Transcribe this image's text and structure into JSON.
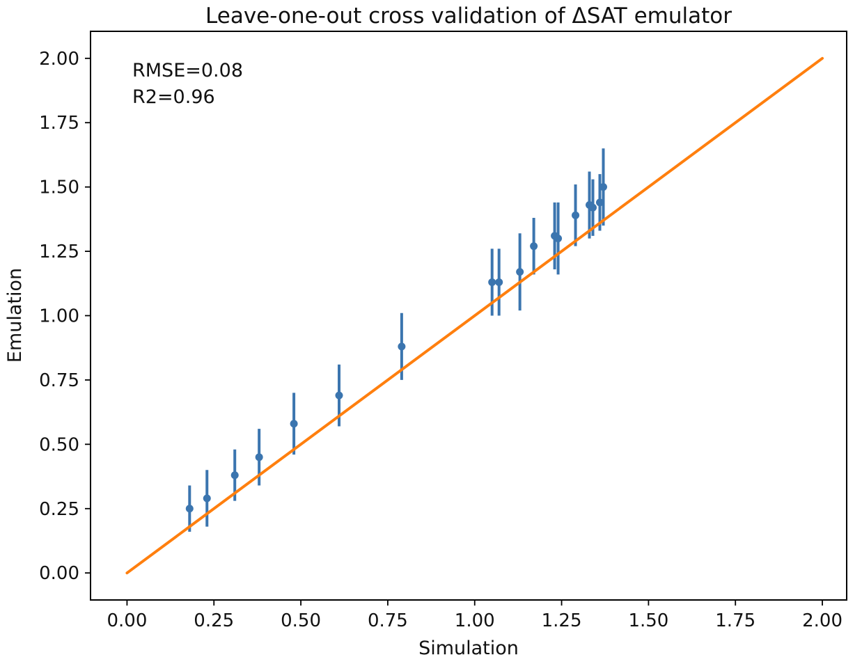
{
  "figure": {
    "background": "#ffffff"
  },
  "chart_data": {
    "type": "scatter",
    "title": "Leave-one-out cross validation of ΔSAT emulator",
    "xlabel": "Simulation",
    "ylabel": "Emulation",
    "xlim": [
      -0.105,
      2.07
    ],
    "ylim": [
      -0.105,
      2.105
    ],
    "xticks": [
      "0.00",
      "0.25",
      "0.50",
      "0.75",
      "1.00",
      "1.25",
      "1.50",
      "1.75",
      "2.00"
    ],
    "yticks": [
      "0.00",
      "0.25",
      "0.50",
      "0.75",
      "1.00",
      "1.25",
      "1.50",
      "1.75",
      "2.00"
    ],
    "grid": false,
    "legend": false,
    "annotations": [
      "RMSE=0.08",
      "R2=0.96"
    ],
    "annotation_color": "#111111",
    "identity_line": {
      "x": [
        0,
        2
      ],
      "y": [
        0,
        2
      ],
      "color": "#ff7f0e",
      "width": 4
    },
    "series": [
      {
        "name": "points",
        "type": "errorbar",
        "color": "#3b75af",
        "marker": "circle",
        "marker_radius": 5.5,
        "errorbar_width": 4,
        "points": [
          {
            "x": 0.18,
            "y": 0.25,
            "yerr": 0.09
          },
          {
            "x": 0.23,
            "y": 0.29,
            "yerr": 0.11
          },
          {
            "x": 0.31,
            "y": 0.38,
            "yerr": 0.1
          },
          {
            "x": 0.38,
            "y": 0.45,
            "yerr": 0.11
          },
          {
            "x": 0.48,
            "y": 0.58,
            "yerr": 0.12
          },
          {
            "x": 0.61,
            "y": 0.69,
            "yerr": 0.12
          },
          {
            "x": 0.79,
            "y": 0.88,
            "yerr": 0.13
          },
          {
            "x": 1.05,
            "y": 1.13,
            "yerr": 0.13
          },
          {
            "x": 1.07,
            "y": 1.13,
            "yerr": 0.13
          },
          {
            "x": 1.13,
            "y": 1.17,
            "yerr": 0.15
          },
          {
            "x": 1.17,
            "y": 1.27,
            "yerr": 0.11
          },
          {
            "x": 1.23,
            "y": 1.31,
            "yerr": 0.13
          },
          {
            "x": 1.24,
            "y": 1.3,
            "yerr": 0.14
          },
          {
            "x": 1.29,
            "y": 1.39,
            "yerr": 0.12
          },
          {
            "x": 1.33,
            "y": 1.43,
            "yerr": 0.13
          },
          {
            "x": 1.34,
            "y": 1.42,
            "yerr": 0.11
          },
          {
            "x": 1.36,
            "y": 1.44,
            "yerr": 0.11
          },
          {
            "x": 1.37,
            "y": 1.5,
            "yerr": 0.15
          }
        ]
      }
    ]
  }
}
